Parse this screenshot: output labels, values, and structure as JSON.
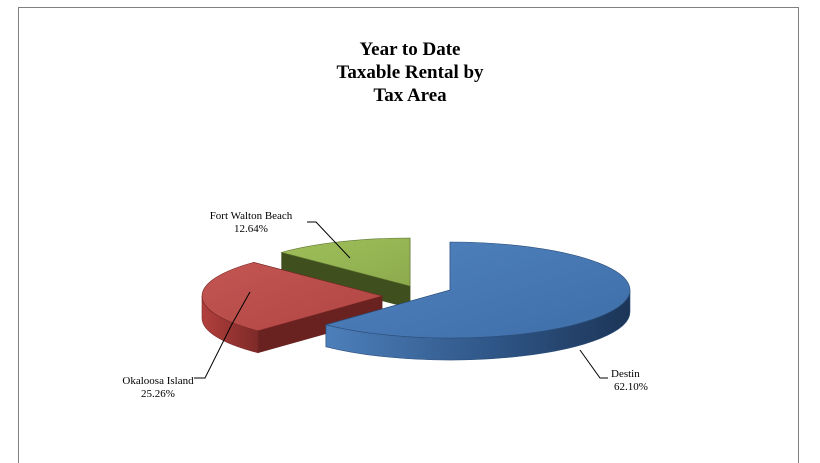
{
  "chart_data": {
    "type": "pie",
    "title": [
      "Year to Date",
      "Taxable Rental by",
      "Tax Area"
    ],
    "slices": [
      {
        "name": "Destin",
        "value": 62.1,
        "label": "62.10%",
        "color": "#4a7ebb"
      },
      {
        "name": "Okaloosa Island",
        "value": 25.26,
        "label": "25.26%",
        "color": "#be4b48"
      },
      {
        "name": "Fort Walton Beach",
        "value": 12.64,
        "label": "12.64%",
        "color": "#98b954"
      }
    ],
    "style": "3d-exploded",
    "legend": "none",
    "data_labels": "outside-with-leader-lines"
  }
}
